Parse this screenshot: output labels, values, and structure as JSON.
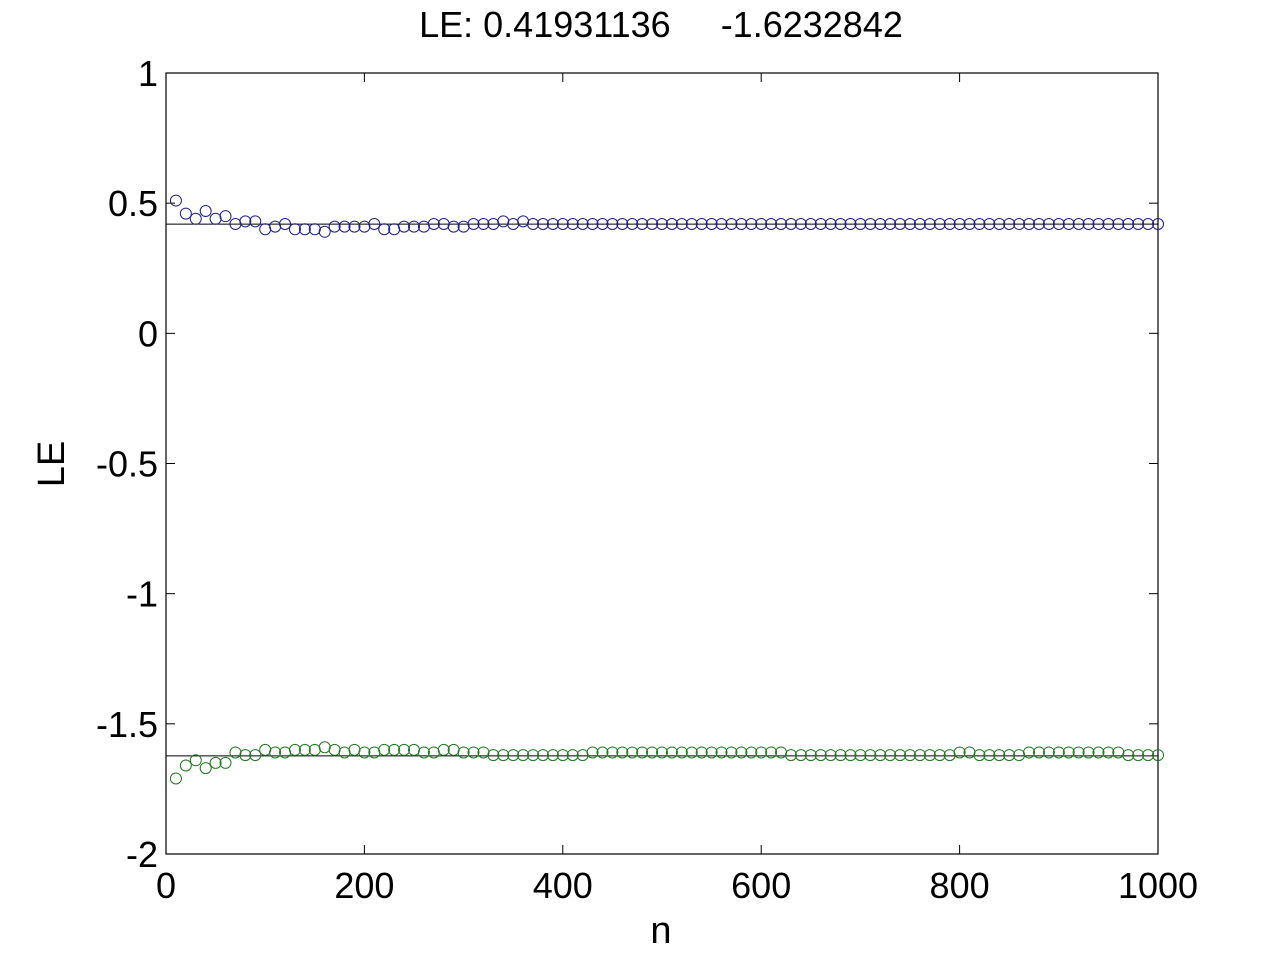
{
  "chart_data": {
    "type": "scatter",
    "title": "LE: 0.41931136     -1.6232842",
    "xlabel": "n",
    "ylabel": "LE",
    "xlim": [
      0,
      1000
    ],
    "ylim": [
      -2,
      1
    ],
    "xticks": [
      "0",
      "200",
      "400",
      "600",
      "800",
      "1000"
    ],
    "yticks": [
      "1",
      "0.5",
      "0",
      "-0.5",
      "-1",
      "-1.5",
      "-2"
    ],
    "grid": false,
    "reference_lines": [
      0.41931136,
      -1.6232842
    ],
    "series": [
      {
        "color": "#1f1f8f",
        "marker": "circle",
        "x": [
          10,
          20,
          30,
          40,
          50,
          60,
          70,
          80,
          90,
          100,
          110,
          120,
          130,
          140,
          150,
          160,
          170,
          180,
          190,
          200,
          210,
          220,
          230,
          240,
          250,
          260,
          270,
          280,
          290,
          300,
          310,
          320,
          330,
          340,
          350,
          360,
          370,
          380,
          390,
          400,
          410,
          420,
          430,
          440,
          450,
          460,
          470,
          480,
          490,
          500,
          510,
          520,
          530,
          540,
          550,
          560,
          570,
          580,
          590,
          600,
          610,
          620,
          630,
          640,
          650,
          660,
          670,
          680,
          690,
          700,
          710,
          720,
          730,
          740,
          750,
          760,
          770,
          780,
          790,
          800,
          810,
          820,
          830,
          840,
          850,
          860,
          870,
          880,
          890,
          900,
          910,
          920,
          930,
          940,
          950,
          960,
          970,
          980,
          990,
          1000
        ],
        "y": [
          0.51,
          0.46,
          0.44,
          0.47,
          0.44,
          0.45,
          0.42,
          0.43,
          0.43,
          0.4,
          0.41,
          0.42,
          0.4,
          0.4,
          0.4,
          0.39,
          0.41,
          0.41,
          0.41,
          0.41,
          0.42,
          0.4,
          0.4,
          0.41,
          0.41,
          0.41,
          0.42,
          0.42,
          0.41,
          0.41,
          0.42,
          0.42,
          0.42,
          0.43,
          0.42,
          0.43,
          0.42,
          0.42,
          0.42,
          0.42,
          0.42,
          0.42,
          0.42,
          0.42,
          0.42,
          0.42,
          0.42,
          0.42,
          0.42,
          0.42,
          0.42,
          0.42,
          0.42,
          0.42,
          0.42,
          0.42,
          0.42,
          0.42,
          0.42,
          0.42,
          0.42,
          0.42,
          0.42,
          0.42,
          0.42,
          0.42,
          0.42,
          0.42,
          0.42,
          0.42,
          0.42,
          0.42,
          0.42,
          0.42,
          0.42,
          0.42,
          0.42,
          0.42,
          0.42,
          0.42,
          0.42,
          0.42,
          0.42,
          0.42,
          0.42,
          0.42,
          0.42,
          0.42,
          0.42,
          0.42,
          0.42,
          0.42,
          0.42,
          0.42,
          0.42,
          0.42,
          0.42,
          0.42,
          0.42,
          0.42
        ]
      },
      {
        "color": "#1e7a1e",
        "marker": "circle",
        "x": [
          10,
          20,
          30,
          40,
          50,
          60,
          70,
          80,
          90,
          100,
          110,
          120,
          130,
          140,
          150,
          160,
          170,
          180,
          190,
          200,
          210,
          220,
          230,
          240,
          250,
          260,
          270,
          280,
          290,
          300,
          310,
          320,
          330,
          340,
          350,
          360,
          370,
          380,
          390,
          400,
          410,
          420,
          430,
          440,
          450,
          460,
          470,
          480,
          490,
          500,
          510,
          520,
          530,
          540,
          550,
          560,
          570,
          580,
          590,
          600,
          610,
          620,
          630,
          640,
          650,
          660,
          670,
          680,
          690,
          700,
          710,
          720,
          730,
          740,
          750,
          760,
          770,
          780,
          790,
          800,
          810,
          820,
          830,
          840,
          850,
          860,
          870,
          880,
          890,
          900,
          910,
          920,
          930,
          940,
          950,
          960,
          970,
          980,
          990,
          1000
        ],
        "y": [
          -1.71,
          -1.66,
          -1.64,
          -1.67,
          -1.65,
          -1.65,
          -1.61,
          -1.62,
          -1.62,
          -1.6,
          -1.61,
          -1.61,
          -1.6,
          -1.6,
          -1.6,
          -1.59,
          -1.6,
          -1.61,
          -1.6,
          -1.61,
          -1.61,
          -1.6,
          -1.6,
          -1.6,
          -1.6,
          -1.61,
          -1.61,
          -1.6,
          -1.6,
          -1.61,
          -1.61,
          -1.61,
          -1.62,
          -1.62,
          -1.62,
          -1.62,
          -1.62,
          -1.62,
          -1.62,
          -1.62,
          -1.62,
          -1.62,
          -1.61,
          -1.61,
          -1.61,
          -1.61,
          -1.61,
          -1.61,
          -1.61,
          -1.61,
          -1.61,
          -1.61,
          -1.61,
          -1.61,
          -1.61,
          -1.61,
          -1.61,
          -1.61,
          -1.61,
          -1.61,
          -1.61,
          -1.61,
          -1.62,
          -1.62,
          -1.62,
          -1.62,
          -1.62,
          -1.62,
          -1.62,
          -1.62,
          -1.62,
          -1.62,
          -1.62,
          -1.62,
          -1.62,
          -1.62,
          -1.62,
          -1.62,
          -1.62,
          -1.61,
          -1.61,
          -1.62,
          -1.62,
          -1.62,
          -1.62,
          -1.62,
          -1.61,
          -1.61,
          -1.61,
          -1.61,
          -1.61,
          -1.61,
          -1.61,
          -1.61,
          -1.61,
          -1.61,
          -1.62,
          -1.62,
          -1.62,
          -1.62
        ]
      }
    ]
  }
}
